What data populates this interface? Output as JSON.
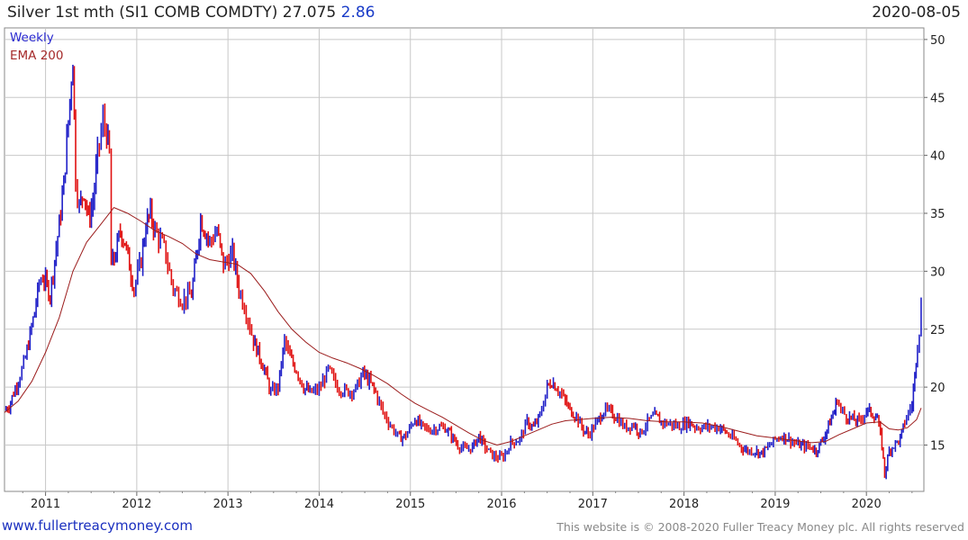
{
  "header": {
    "title": "Silver 1st mth (SI1 COMB COMDTY) 27.075",
    "change": "2.86",
    "date": "2020-08-05"
  },
  "legend": {
    "weekly": "Weekly",
    "ema": "EMA 200"
  },
  "footer": {
    "left": "www.fullertreacymoney.com",
    "right": "This website is © 2008-2020 Fuller Treacy Money plc. All rights reserved"
  },
  "colors": {
    "up": "#2020c8",
    "down": "#e01010",
    "ema": "#9b1c1c",
    "grid": "#c8c8c8"
  },
  "chart_data": {
    "type": "line",
    "frequency": "weekly",
    "x_range": [
      2010.55,
      2020.63
    ],
    "ylim": [
      11,
      51
    ],
    "y_ticks": [
      15,
      20,
      25,
      30,
      35,
      40,
      45,
      50
    ],
    "x_ticks": [
      "2011",
      "2012",
      "2013",
      "2014",
      "2015",
      "2016",
      "2017",
      "2018",
      "2019",
      "2020"
    ],
    "grid": true,
    "y_axis_side": "right",
    "series": [
      {
        "name": "Weekly",
        "points": [
          [
            2010.55,
            18.0
          ],
          [
            2010.6,
            18.4
          ],
          [
            2010.65,
            19.5
          ],
          [
            2010.72,
            21.0
          ],
          [
            2010.78,
            22.5
          ],
          [
            2010.83,
            24.5
          ],
          [
            2010.88,
            26.5
          ],
          [
            2010.93,
            29.0
          ],
          [
            2010.97,
            29.5
          ],
          [
            2011.0,
            29.0
          ],
          [
            2011.05,
            28.0
          ],
          [
            2011.1,
            31.0
          ],
          [
            2011.15,
            34.0
          ],
          [
            2011.2,
            37.5
          ],
          [
            2011.25,
            43.0
          ],
          [
            2011.3,
            48.5
          ],
          [
            2011.33,
            38.0
          ],
          [
            2011.37,
            35.5
          ],
          [
            2011.42,
            37.0
          ],
          [
            2011.47,
            34.5
          ],
          [
            2011.52,
            36.0
          ],
          [
            2011.57,
            40.0
          ],
          [
            2011.63,
            43.0
          ],
          [
            2011.67,
            42.0
          ],
          [
            2011.7,
            40.0
          ],
          [
            2011.72,
            30.5
          ],
          [
            2011.77,
            31.5
          ],
          [
            2011.82,
            33.5
          ],
          [
            2011.87,
            32.5
          ],
          [
            2011.92,
            30.5
          ],
          [
            2011.97,
            28.5
          ],
          [
            2012.05,
            31.0
          ],
          [
            2012.1,
            34.0
          ],
          [
            2012.15,
            35.0
          ],
          [
            2012.2,
            33.5
          ],
          [
            2012.3,
            32.0
          ],
          [
            2012.4,
            28.5
          ],
          [
            2012.5,
            27.5
          ],
          [
            2012.6,
            28.0
          ],
          [
            2012.65,
            31.0
          ],
          [
            2012.7,
            34.5
          ],
          [
            2012.75,
            33.5
          ],
          [
            2012.8,
            32.5
          ],
          [
            2012.88,
            33.5
          ],
          [
            2012.95,
            30.5
          ],
          [
            2013.05,
            31.5
          ],
          [
            2013.12,
            28.5
          ],
          [
            2013.2,
            26.5
          ],
          [
            2013.28,
            24.0
          ],
          [
            2013.33,
            23.0
          ],
          [
            2013.4,
            21.5
          ],
          [
            2013.47,
            19.5
          ],
          [
            2013.55,
            20.0
          ],
          [
            2013.62,
            24.0
          ],
          [
            2013.68,
            22.5
          ],
          [
            2013.75,
            21.5
          ],
          [
            2013.83,
            20.0
          ],
          [
            2013.9,
            19.5
          ],
          [
            2014.0,
            19.8
          ],
          [
            2014.1,
            21.5
          ],
          [
            2014.2,
            20.0
          ],
          [
            2014.3,
            19.6
          ],
          [
            2014.4,
            19.8
          ],
          [
            2014.48,
            21.2
          ],
          [
            2014.55,
            20.5
          ],
          [
            2014.62,
            19.5
          ],
          [
            2014.7,
            17.8
          ],
          [
            2014.8,
            16.5
          ],
          [
            2014.88,
            15.6
          ],
          [
            2014.95,
            15.8
          ],
          [
            2015.05,
            17.3
          ],
          [
            2015.12,
            16.6
          ],
          [
            2015.2,
            16.3
          ],
          [
            2015.3,
            16.5
          ],
          [
            2015.38,
            16.5
          ],
          [
            2015.45,
            15.8
          ],
          [
            2015.52,
            15.0
          ],
          [
            2015.6,
            14.6
          ],
          [
            2015.68,
            14.8
          ],
          [
            2015.75,
            15.8
          ],
          [
            2015.82,
            14.8
          ],
          [
            2015.9,
            14.1
          ],
          [
            2015.96,
            13.9
          ],
          [
            2016.02,
            14.0
          ],
          [
            2016.1,
            15.2
          ],
          [
            2016.2,
            15.5
          ],
          [
            2016.28,
            17.0
          ],
          [
            2016.35,
            16.5
          ],
          [
            2016.42,
            17.5
          ],
          [
            2016.5,
            20.0
          ],
          [
            2016.55,
            20.5
          ],
          [
            2016.62,
            19.8
          ],
          [
            2016.68,
            19.0
          ],
          [
            2016.75,
            18.0
          ],
          [
            2016.82,
            17.5
          ],
          [
            2016.88,
            16.5
          ],
          [
            2016.95,
            15.9
          ],
          [
            2017.05,
            17.0
          ],
          [
            2017.12,
            18.0
          ],
          [
            2017.2,
            17.8
          ],
          [
            2017.27,
            17.3
          ],
          [
            2017.35,
            16.5
          ],
          [
            2017.45,
            16.8
          ],
          [
            2017.52,
            16.0
          ],
          [
            2017.6,
            17.0
          ],
          [
            2017.68,
            17.5
          ],
          [
            2017.75,
            17.0
          ],
          [
            2017.85,
            16.8
          ],
          [
            2017.95,
            16.6
          ],
          [
            2018.05,
            17.0
          ],
          [
            2018.12,
            16.6
          ],
          [
            2018.2,
            16.5
          ],
          [
            2018.3,
            16.6
          ],
          [
            2018.4,
            16.5
          ],
          [
            2018.47,
            16.0
          ],
          [
            2018.55,
            15.5
          ],
          [
            2018.63,
            14.8
          ],
          [
            2018.7,
            14.5
          ],
          [
            2018.78,
            14.5
          ],
          [
            2018.85,
            14.3
          ],
          [
            2018.92,
            14.8
          ],
          [
            2019.0,
            15.5
          ],
          [
            2019.08,
            15.8
          ],
          [
            2019.15,
            15.5
          ],
          [
            2019.25,
            15.0
          ],
          [
            2019.32,
            14.9
          ],
          [
            2019.4,
            14.8
          ],
          [
            2019.45,
            14.5
          ],
          [
            2019.5,
            15.2
          ],
          [
            2019.55,
            16.0
          ],
          [
            2019.6,
            17.0
          ],
          [
            2019.65,
            18.0
          ],
          [
            2019.68,
            19.0
          ],
          [
            2019.72,
            18.0
          ],
          [
            2019.78,
            17.5
          ],
          [
            2019.85,
            17.2
          ],
          [
            2019.92,
            17.0
          ],
          [
            2020.0,
            18.0
          ],
          [
            2020.05,
            17.8
          ],
          [
            2020.12,
            17.3
          ],
          [
            2020.17,
            15.0
          ],
          [
            2020.2,
            12.5
          ],
          [
            2020.25,
            14.5
          ],
          [
            2020.3,
            15.0
          ],
          [
            2020.37,
            15.5
          ],
          [
            2020.42,
            17.0
          ],
          [
            2020.46,
            17.8
          ],
          [
            2020.5,
            18.5
          ],
          [
            2020.53,
            21.0
          ],
          [
            2020.56,
            24.0
          ],
          [
            2020.58,
            25.0
          ],
          [
            2020.6,
            27.0
          ]
        ]
      },
      {
        "name": "EMA 200",
        "points": [
          [
            2010.55,
            17.8
          ],
          [
            2010.7,
            18.8
          ],
          [
            2010.85,
            20.5
          ],
          [
            2011.0,
            23.0
          ],
          [
            2011.15,
            26.0
          ],
          [
            2011.3,
            30.0
          ],
          [
            2011.45,
            32.5
          ],
          [
            2011.6,
            34.0
          ],
          [
            2011.75,
            35.5
          ],
          [
            2011.9,
            35.0
          ],
          [
            2012.05,
            34.3
          ],
          [
            2012.2,
            33.5
          ],
          [
            2012.35,
            33.0
          ],
          [
            2012.5,
            32.4
          ],
          [
            2012.65,
            31.5
          ],
          [
            2012.8,
            31.0
          ],
          [
            2012.95,
            30.8
          ],
          [
            2013.1,
            30.6
          ],
          [
            2013.25,
            29.8
          ],
          [
            2013.4,
            28.3
          ],
          [
            2013.55,
            26.5
          ],
          [
            2013.7,
            25.0
          ],
          [
            2013.85,
            23.9
          ],
          [
            2014.0,
            23.0
          ],
          [
            2014.15,
            22.5
          ],
          [
            2014.3,
            22.1
          ],
          [
            2014.45,
            21.6
          ],
          [
            2014.6,
            21.0
          ],
          [
            2014.75,
            20.3
          ],
          [
            2014.9,
            19.4
          ],
          [
            2015.05,
            18.6
          ],
          [
            2015.2,
            18.0
          ],
          [
            2015.35,
            17.4
          ],
          [
            2015.5,
            16.7
          ],
          [
            2015.65,
            16.0
          ],
          [
            2015.8,
            15.4
          ],
          [
            2015.95,
            15.0
          ],
          [
            2016.1,
            15.3
          ],
          [
            2016.25,
            15.8
          ],
          [
            2016.4,
            16.3
          ],
          [
            2016.55,
            16.8
          ],
          [
            2016.7,
            17.1
          ],
          [
            2016.85,
            17.2
          ],
          [
            2017.0,
            17.3
          ],
          [
            2017.2,
            17.4
          ],
          [
            2017.4,
            17.3
          ],
          [
            2017.6,
            17.1
          ],
          [
            2017.8,
            17.0
          ],
          [
            2018.0,
            17.0
          ],
          [
            2018.2,
            16.9
          ],
          [
            2018.4,
            16.6
          ],
          [
            2018.6,
            16.2
          ],
          [
            2018.8,
            15.8
          ],
          [
            2019.0,
            15.6
          ],
          [
            2019.2,
            15.4
          ],
          [
            2019.4,
            15.2
          ],
          [
            2019.55,
            15.3
          ],
          [
            2019.7,
            15.9
          ],
          [
            2019.85,
            16.4
          ],
          [
            2020.0,
            16.9
          ],
          [
            2020.15,
            17.0
          ],
          [
            2020.25,
            16.4
          ],
          [
            2020.35,
            16.3
          ],
          [
            2020.45,
            16.5
          ],
          [
            2020.55,
            17.2
          ],
          [
            2020.6,
            18.2
          ]
        ]
      }
    ]
  }
}
